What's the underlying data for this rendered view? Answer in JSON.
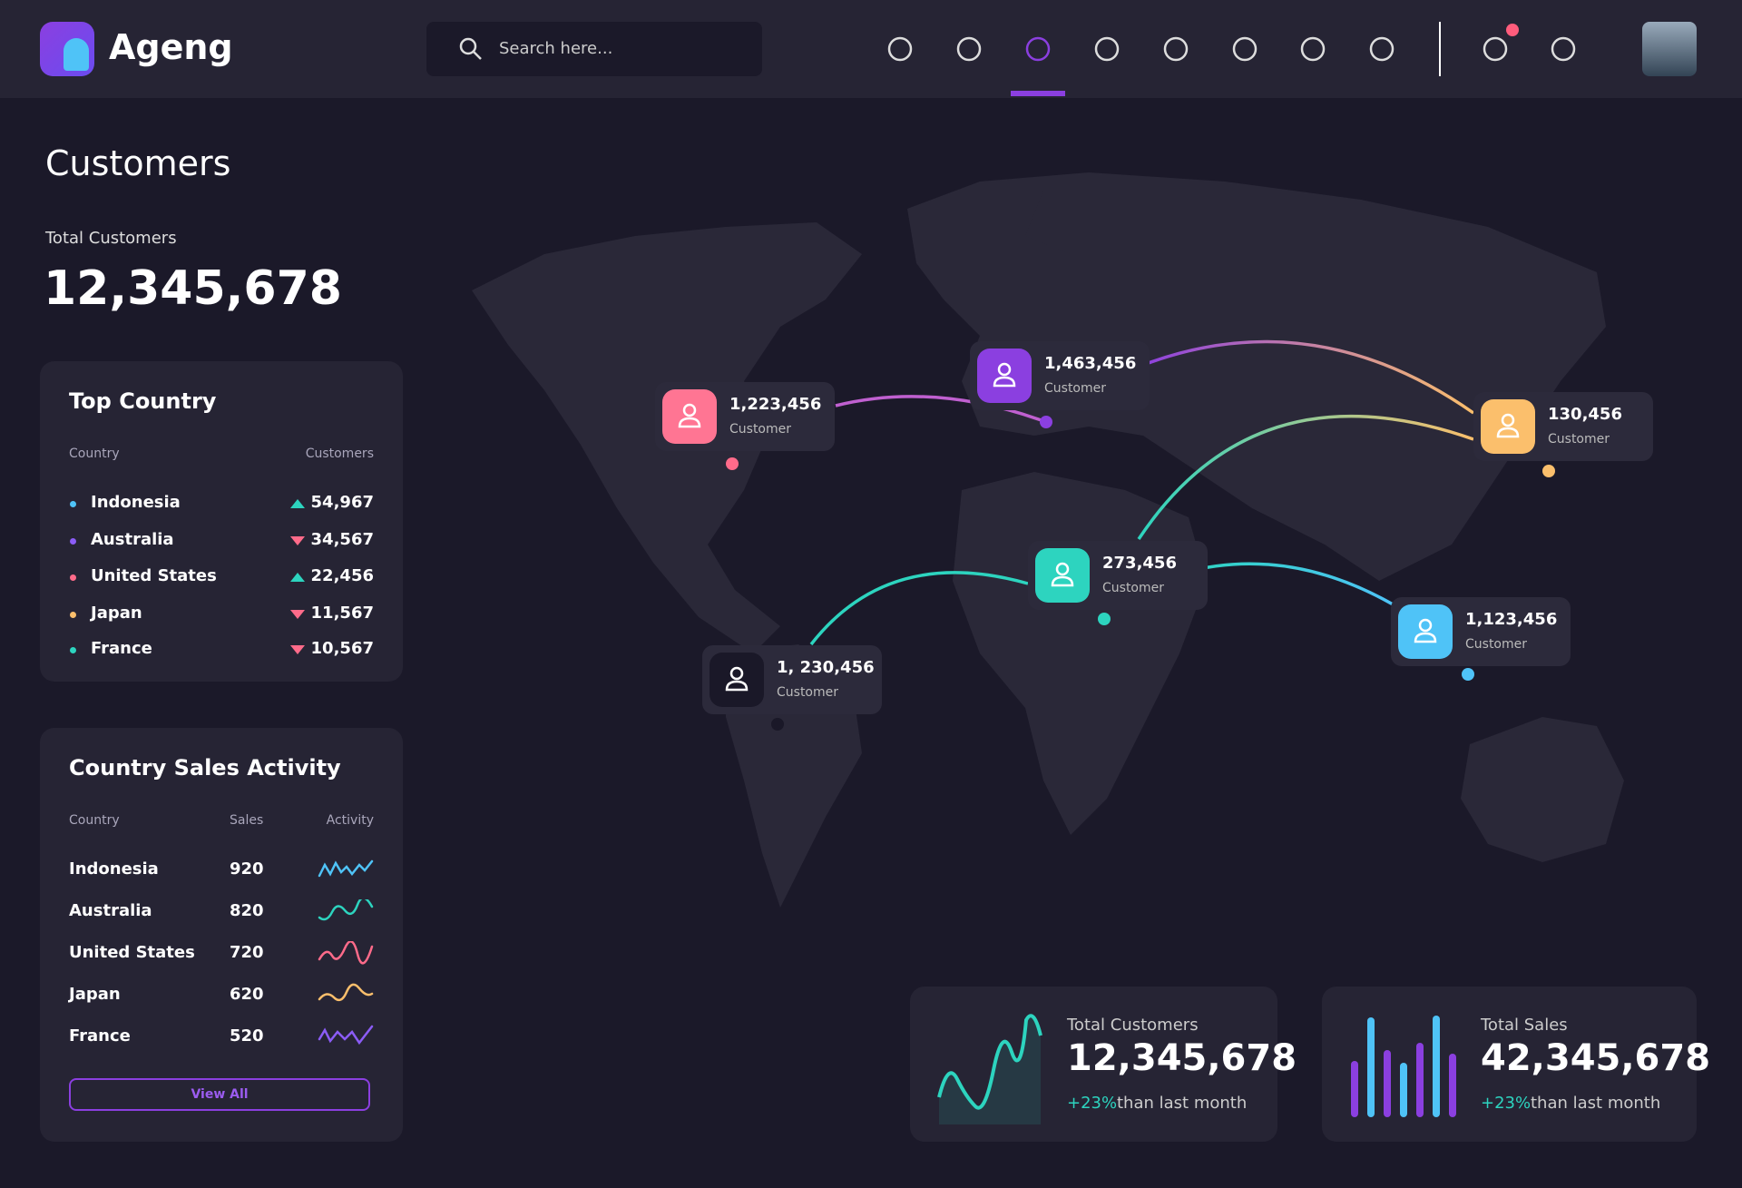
{
  "header": {
    "brand": "Ageng",
    "search_placeholder": "Search here..."
  },
  "page": {
    "title": "Customers",
    "total_label": "Total Customers",
    "total_value": "12,345,678"
  },
  "top_country": {
    "title": "Top Country",
    "columns": [
      "Country",
      "Customers"
    ],
    "rows": [
      {
        "country": "Indonesia",
        "customers": "54,967",
        "trend": "up",
        "color": "#4fc3f7"
      },
      {
        "country": "Australia",
        "customers": "34,567",
        "trend": "down",
        "color": "#8b5cf6"
      },
      {
        "country": "United States",
        "customers": "22,456",
        "trend": "up",
        "color": "#ff6b8a"
      },
      {
        "country": "Japan",
        "customers": "11,567",
        "trend": "down",
        "color": "#fbbf6c"
      },
      {
        "country": "France",
        "customers": "10,567",
        "trend": "down",
        "color": "#2dd4bf"
      }
    ]
  },
  "sales_activity": {
    "title": "Country Sales Activity",
    "columns": [
      "Country",
      "Sales",
      "Activity"
    ],
    "rows": [
      {
        "country": "Indonesia",
        "sales": "920",
        "color": "#4fc3f7"
      },
      {
        "country": "Australia",
        "sales": "820",
        "color": "#2dd4bf"
      },
      {
        "country": "United States",
        "sales": "720",
        "color": "#ff6b8a"
      },
      {
        "country": "Japan",
        "sales": "620",
        "color": "#fbbf6c"
      },
      {
        "country": "France",
        "sales": "520",
        "color": "#8b5cf6"
      }
    ],
    "button": "View All"
  },
  "map_markers": [
    {
      "value": "1,223,456",
      "label": "Customer",
      "color": "#ff7593"
    },
    {
      "value": "1,463,456",
      "label": "Customer",
      "color": "#8b3fe0"
    },
    {
      "value": "130,456",
      "label": "Customer",
      "color": "#fbbf6c"
    },
    {
      "value": "273,456",
      "label": "Customer",
      "color": "#2dd4bf"
    },
    {
      "value": "1,123,456",
      "label": "Customer",
      "color": "#4fc3f7"
    },
    {
      "value": "1, 230,456",
      "label": "Customer",
      "color": "#1a1828"
    }
  ],
  "stats": [
    {
      "label": "Total Customers",
      "value": "12,345,678",
      "change": "+23%",
      "suffix": "than last month"
    },
    {
      "label": "Total Sales",
      "value": "42,345,678",
      "change": "+23%",
      "suffix": "than last month"
    }
  ]
}
